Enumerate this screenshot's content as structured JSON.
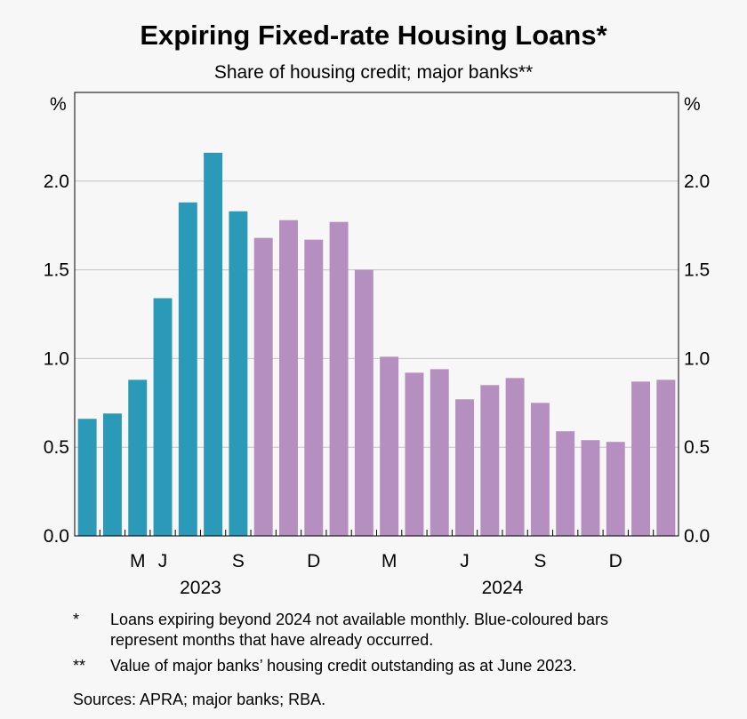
{
  "chart_data": {
    "type": "bar",
    "title": "Expiring Fixed-rate Housing Loans*",
    "subtitle": "Share of housing credit; major banks**",
    "y_unit_left": "%",
    "y_unit_right": "%",
    "ylim": [
      0,
      2.5
    ],
    "yticks": [
      "0.0",
      "0.5",
      "1.0",
      "1.5",
      "2.0"
    ],
    "ytick_values": [
      0,
      0.5,
      1.0,
      1.5,
      2.0
    ],
    "grid": true,
    "categories": [
      "2023-03",
      "2023-04",
      "2023-05",
      "2023-06",
      "2023-07",
      "2023-08",
      "2023-09",
      "2023-10",
      "2023-11",
      "2023-12",
      "2024-01",
      "2024-02",
      "2024-03",
      "2024-04",
      "2024-05",
      "2024-06",
      "2024-07",
      "2024-08",
      "2024-09",
      "2024-10",
      "2024-11",
      "2024-12",
      "2025-01",
      "2025-02"
    ],
    "values": [
      0.66,
      0.69,
      0.88,
      1.34,
      1.88,
      2.16,
      1.83,
      1.68,
      1.78,
      1.67,
      1.77,
      1.5,
      1.01,
      0.92,
      0.94,
      0.77,
      0.85,
      0.89,
      0.75,
      0.59,
      0.54,
      0.53,
      0.87,
      0.88
    ],
    "occurred_count": 7,
    "colors": {
      "occurred": "#2b9ab8",
      "future": "#b48fc0"
    },
    "x_month_labels": [
      {
        "label": "M",
        "category": "2023-05"
      },
      {
        "label": "J",
        "category": "2023-06"
      },
      {
        "label": "S",
        "category": "2023-09"
      },
      {
        "label": "D",
        "category": "2023-12"
      },
      {
        "label": "M",
        "category": "2024-03"
      },
      {
        "label": "J",
        "category": "2024-06"
      },
      {
        "label": "S",
        "category": "2024-09"
      },
      {
        "label": "D",
        "category": "2024-12"
      }
    ],
    "x_year_labels": [
      {
        "label": "2023",
        "from": "2023-03",
        "to": "2023-12"
      },
      {
        "label": "2024",
        "from": "2024-01",
        "to": "2025-02"
      }
    ]
  },
  "notes": [
    {
      "mark": "*",
      "text": "Loans expiring beyond 2024 not available monthly. Blue-coloured bars represent months that have already occurred."
    },
    {
      "mark": "**",
      "text": "Value of major banks’ housing credit outstanding as at June 2023."
    }
  ],
  "sources": "Sources: APRA; major banks; RBA."
}
